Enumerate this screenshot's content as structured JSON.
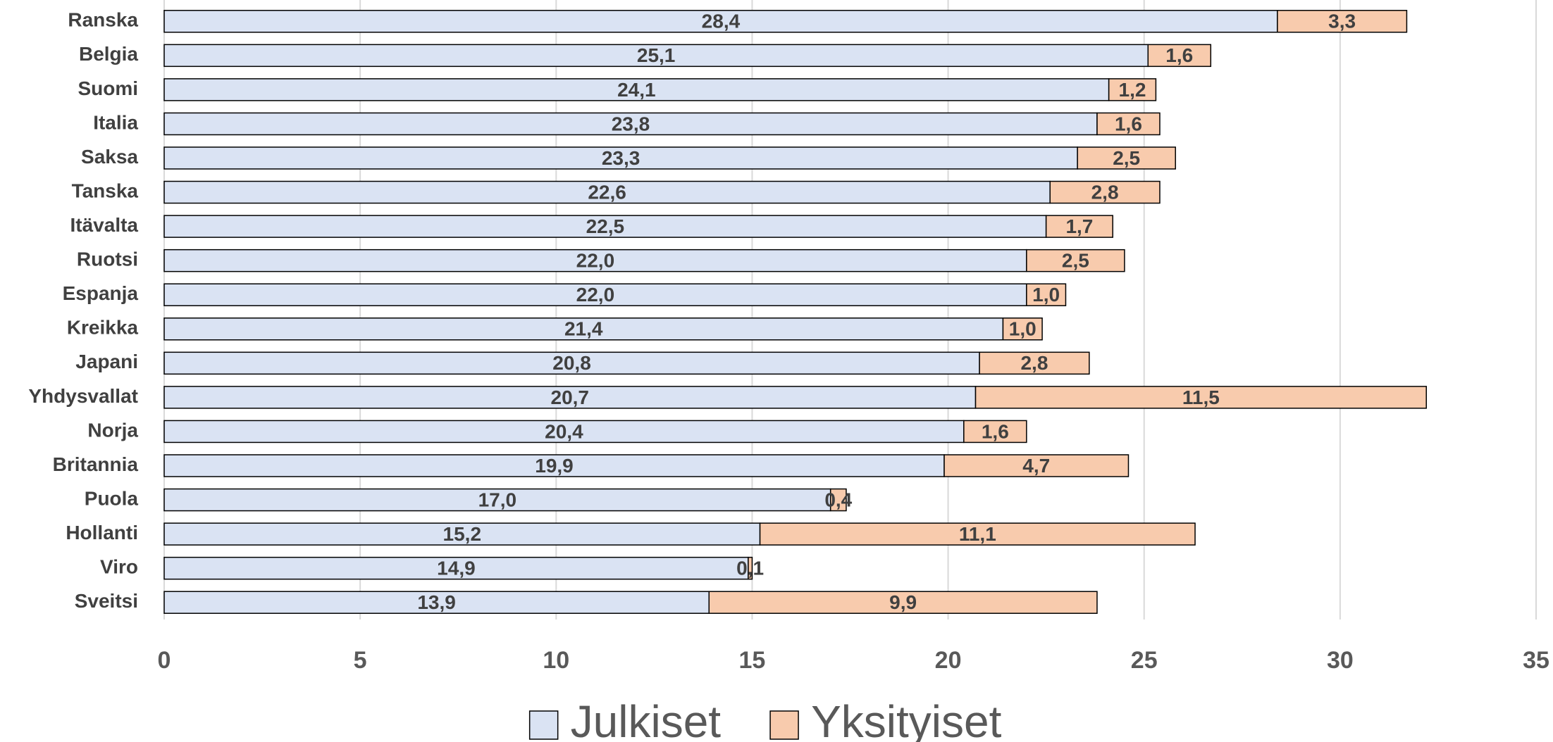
{
  "chart_data": {
    "type": "stacked-bar-horizontal",
    "categories": [
      "Ranska",
      "Belgia",
      "Suomi",
      "Italia",
      "Saksa",
      "Tanska",
      "Itävalta",
      "Ruotsi",
      "Espanja",
      "Kreikka",
      "Japani",
      "Yhdysvallat",
      "Norja",
      "Britannia",
      "Puola",
      "Hollanti",
      "Viro",
      "Sveitsi"
    ],
    "series": [
      {
        "name": "Julkiset",
        "color": "#dae3f3",
        "values": [
          28.4,
          25.1,
          24.1,
          23.8,
          23.3,
          22.6,
          22.5,
          22.0,
          22.0,
          21.4,
          20.8,
          20.7,
          20.4,
          19.9,
          17.0,
          15.2,
          14.9,
          13.9
        ],
        "value_labels": [
          "28,4",
          "25,1",
          "24,1",
          "23,8",
          "23,3",
          "22,6",
          "22,5",
          "22,0",
          "22,0",
          "21,4",
          "20,8",
          "20,7",
          "20,4",
          "19,9",
          "17,0",
          "15,2",
          "14,9",
          "13,9"
        ]
      },
      {
        "name": "Yksityiset",
        "color": "#f8cbad",
        "values": [
          3.3,
          1.6,
          1.2,
          1.6,
          2.5,
          2.8,
          1.7,
          2.5,
          1.0,
          1.0,
          2.8,
          11.5,
          1.6,
          4.7,
          0.4,
          11.1,
          0.1,
          9.9
        ],
        "value_labels": [
          "3,3",
          "1,6",
          "1,2",
          "1,6",
          "2,5",
          "2,8",
          "1,7",
          "2,5",
          "1,0",
          "1,0",
          "2,8",
          "11,5",
          "1,6",
          "4,7",
          "0,4",
          "11,1",
          "0,1",
          "9,9"
        ]
      }
    ],
    "xlim": [
      0,
      35
    ],
    "xticks": [
      0,
      5,
      10,
      15,
      20,
      25,
      30,
      35
    ],
    "grid": true,
    "legend": "bottom"
  }
}
